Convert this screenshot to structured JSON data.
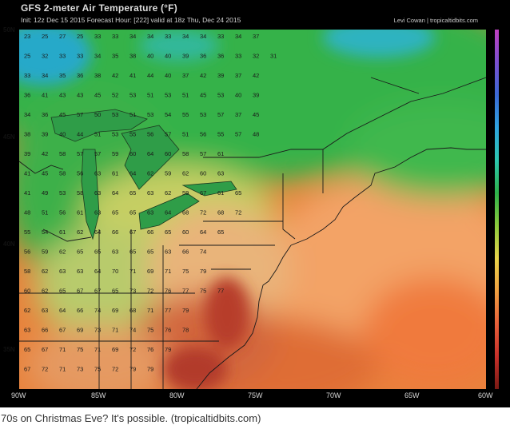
{
  "header": {
    "title": "GFS 2-meter Air Temperature (°F)",
    "subtitle": "Init: 12z Dec 15 2015   Forecast Hour: [222]   valid at 18z Thu, Dec 24 2015",
    "credit": "Levi Cowan | tropicaltidbits.com"
  },
  "lat_labels": [
    "50N",
    "45N",
    "40N",
    "35N"
  ],
  "lon_labels": [
    "90W",
    "85W",
    "80W",
    "75W",
    "70W",
    "65W",
    "60W"
  ],
  "caption": "70s on Christmas Eve? It's possible. (tropicaltidbits.com)",
  "colors": {
    "cold": "#2fa7c7",
    "mild": "#3db54a",
    "cool_green": "#8fc94f",
    "warm": "#f0a868",
    "hot": "#d65a3a",
    "very_hot": "#b8302c",
    "background": "#000000"
  },
  "map": {
    "temperature_rows": [
      [
        "23",
        "25",
        "27",
        "25",
        "33",
        "33",
        "34",
        "34",
        "33",
        "34",
        "34",
        "33",
        "34",
        "37"
      ],
      [
        "25",
        "32",
        "33",
        "33",
        "34",
        "35",
        "38",
        "40",
        "40",
        "39",
        "36",
        "36",
        "33",
        "32",
        "31"
      ],
      [
        "33",
        "34",
        "35",
        "36",
        "38",
        "42",
        "41",
        "44",
        "40",
        "37",
        "42",
        "39",
        "37",
        "42"
      ],
      [
        "36",
        "41",
        "43",
        "43",
        "45",
        "52",
        "53",
        "51",
        "53",
        "51",
        "45",
        "53",
        "40",
        "39"
      ],
      [
        "34",
        "36",
        "45",
        "57",
        "50",
        "53",
        "51",
        "53",
        "54",
        "55",
        "53",
        "57",
        "37",
        "45"
      ],
      [
        "38",
        "39",
        "40",
        "44",
        "51",
        "53",
        "55",
        "56",
        "57",
        "51",
        "56",
        "55",
        "57",
        "48"
      ],
      [
        "39",
        "42",
        "58",
        "57",
        "57",
        "59",
        "60",
        "64",
        "60",
        "58",
        "57",
        "61"
      ],
      [
        "41",
        "45",
        "58",
        "56",
        "63",
        "61",
        "64",
        "62",
        "59",
        "62",
        "60",
        "63"
      ],
      [
        "41",
        "49",
        "53",
        "58",
        "63",
        "64",
        "65",
        "63",
        "62",
        "59",
        "67",
        "61",
        "65"
      ],
      [
        "48",
        "51",
        "56",
        "61",
        "63",
        "65",
        "65",
        "63",
        "64",
        "68",
        "72",
        "68",
        "72"
      ],
      [
        "55",
        "54",
        "61",
        "62",
        "64",
        "66",
        "67",
        "66",
        "65",
        "60",
        "64",
        "65"
      ],
      [
        "56",
        "59",
        "62",
        "65",
        "65",
        "63",
        "65",
        "65",
        "63",
        "66",
        "74"
      ],
      [
        "58",
        "62",
        "63",
        "63",
        "64",
        "70",
        "71",
        "69",
        "71",
        "75",
        "79"
      ],
      [
        "60",
        "62",
        "65",
        "67",
        "67",
        "65",
        "73",
        "72",
        "76",
        "77",
        "75",
        "77"
      ],
      [
        "62",
        "63",
        "64",
        "66",
        "74",
        "69",
        "68",
        "71",
        "77",
        "79"
      ],
      [
        "63",
        "66",
        "67",
        "69",
        "73",
        "71",
        "74",
        "75",
        "76",
        "78"
      ],
      [
        "65",
        "67",
        "71",
        "75",
        "71",
        "69",
        "72",
        "76",
        "79"
      ],
      [
        "67",
        "72",
        "71",
        "73",
        "75",
        "72",
        "79",
        "79"
      ]
    ]
  }
}
